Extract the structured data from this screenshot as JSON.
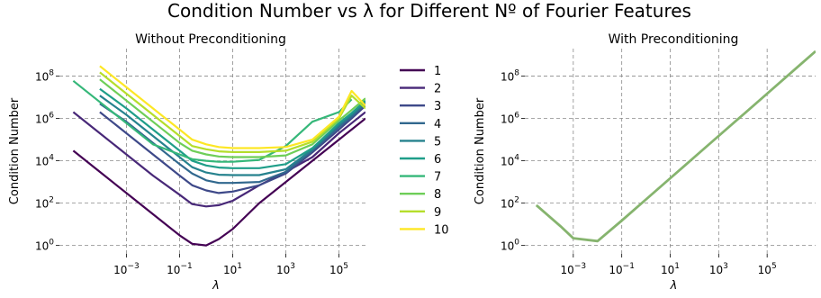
{
  "suptitle": "Condition Number vs λ for Different Nº of Fourier Features",
  "chart_data": [
    {
      "type": "line",
      "title": "Without Preconditioning",
      "xlabel": "λ",
      "ylabel": "Condition Number",
      "xscale": "log",
      "yscale": "log",
      "xlim": [
        3e-06,
        1000000
      ],
      "ylim": [
        0.4,
        2000000000.0
      ],
      "xticks": [
        {
          "base": "10",
          "exp": "−3",
          "value": 0.001
        },
        {
          "base": "10",
          "exp": "−1",
          "value": 0.1
        },
        {
          "base": "10",
          "exp": "1",
          "value": 10
        },
        {
          "base": "10",
          "exp": "3",
          "value": 1000
        },
        {
          "base": "10",
          "exp": "5",
          "value": 100000
        }
      ],
      "yticks": [
        {
          "base": "10",
          "exp": "0",
          "value": 1
        },
        {
          "base": "10",
          "exp": "2",
          "value": 100
        },
        {
          "base": "10",
          "exp": "4",
          "value": 10000
        },
        {
          "base": "10",
          "exp": "6",
          "value": 1000000
        },
        {
          "base": "10",
          "exp": "8",
          "value": 100000000
        }
      ],
      "grid": true,
      "legend": "outside-right",
      "x": [
        1e-05,
        0.0001,
        0.001,
        0.01,
        0.1,
        0.3,
        1,
        3,
        10,
        100,
        1000,
        10000,
        100000,
        300000,
        1000000
      ],
      "series": [
        {
          "name": "1",
          "color": "#440154",
          "values": [
            30000,
            3000,
            300,
            30,
            3,
            1.2,
            1,
            2,
            6,
            100,
            1000,
            10000,
            100000,
            300000,
            1000000
          ]
        },
        {
          "name": "2",
          "color": "#482878",
          "values": [
            2000000,
            200000,
            20000,
            2000,
            250,
            90,
            70,
            80,
            130,
            700,
            3000,
            15000,
            200000,
            600000,
            2000000
          ]
        },
        {
          "name": "3",
          "color": "#3e4989",
          "values": [
            null,
            2000000,
            200000,
            20000,
            2000,
            700,
            400,
            300,
            350,
            700,
            2500,
            25000,
            300000,
            1000000,
            4000000
          ]
        },
        {
          "name": "4",
          "color": "#31688e",
          "values": [
            null,
            5000000,
            700000,
            70000,
            7000,
            2500,
            1200,
            900,
            900,
            1000,
            3000,
            30000,
            400000,
            1200000,
            5000000
          ]
        },
        {
          "name": "5",
          "color": "#26828e",
          "values": [
            null,
            12000000,
            1500000,
            150000,
            15000,
            5000,
            2800,
            2200,
            2100,
            2100,
            4000,
            35000,
            500000,
            1500000,
            6000000
          ]
        },
        {
          "name": "6",
          "color": "#1f9e89",
          "values": [
            null,
            25000000,
            3000000,
            300000,
            30000,
            10000,
            6000,
            4800,
            4500,
            4500,
            7000,
            40000,
            600000,
            1800000,
            7000000
          ]
        },
        {
          "name": "7",
          "color": "#35b779",
          "values": [
            60000000,
            6000000,
            600000,
            60000,
            20000,
            12000,
            10000,
            9000,
            9000,
            11000,
            50000,
            700000,
            2000000,
            8000000,
            null
          ]
        },
        {
          "name": "8",
          "color": "#6ece58",
          "values": [
            null,
            70000000,
            7000000,
            700000,
            70000,
            30000,
            20000,
            16000,
            15000,
            15000,
            18000,
            60000,
            800000,
            2500000,
            9000000
          ]
        },
        {
          "name": "9",
          "color": "#b5de2b",
          "values": [
            null,
            150000000,
            15000000,
            1500000,
            150000,
            50000,
            35000,
            28000,
            26000,
            26000,
            30000,
            80000,
            1000000,
            12000000,
            3000000
          ]
        },
        {
          "name": "10",
          "color": "#fde725",
          "values": [
            null,
            300000000,
            30000000,
            3000000,
            300000,
            100000,
            60000,
            45000,
            40000,
            40000,
            45000,
            100000,
            1200000,
            20000000,
            4000000
          ]
        }
      ]
    },
    {
      "type": "line",
      "title": "With Preconditioning",
      "xlabel": "λ",
      "ylabel": "Condition Number",
      "xscale": "log",
      "yscale": "log",
      "xlim": [
        1e-05,
        10000000
      ],
      "ylim": [
        0.4,
        2000000000.0
      ],
      "xticks": [
        {
          "base": "10",
          "exp": "−3",
          "value": 0.001
        },
        {
          "base": "10",
          "exp": "−1",
          "value": 0.1
        },
        {
          "base": "10",
          "exp": "1",
          "value": 10
        },
        {
          "base": "10",
          "exp": "3",
          "value": 1000
        },
        {
          "base": "10",
          "exp": "5",
          "value": 100000
        }
      ],
      "yticks": [
        {
          "base": "10",
          "exp": "0",
          "value": 1
        },
        {
          "base": "10",
          "exp": "2",
          "value": 100
        },
        {
          "base": "10",
          "exp": "4",
          "value": 10000
        },
        {
          "base": "10",
          "exp": "6",
          "value": 1000000
        },
        {
          "base": "10",
          "exp": "8",
          "value": 100000000
        }
      ],
      "grid": true,
      "x": [
        3e-05,
        0.0003,
        0.001,
        0.01,
        0.1,
        1,
        10,
        100,
        1000,
        10000,
        100000,
        1000000,
        10000000
      ],
      "series": [
        {
          "color": "#86b46e",
          "values": [
            80,
            8,
            2.2,
            1.6,
            15,
            150,
            1500,
            15000,
            150000,
            1500000,
            15000000,
            150000000,
            1500000000
          ]
        }
      ]
    }
  ]
}
